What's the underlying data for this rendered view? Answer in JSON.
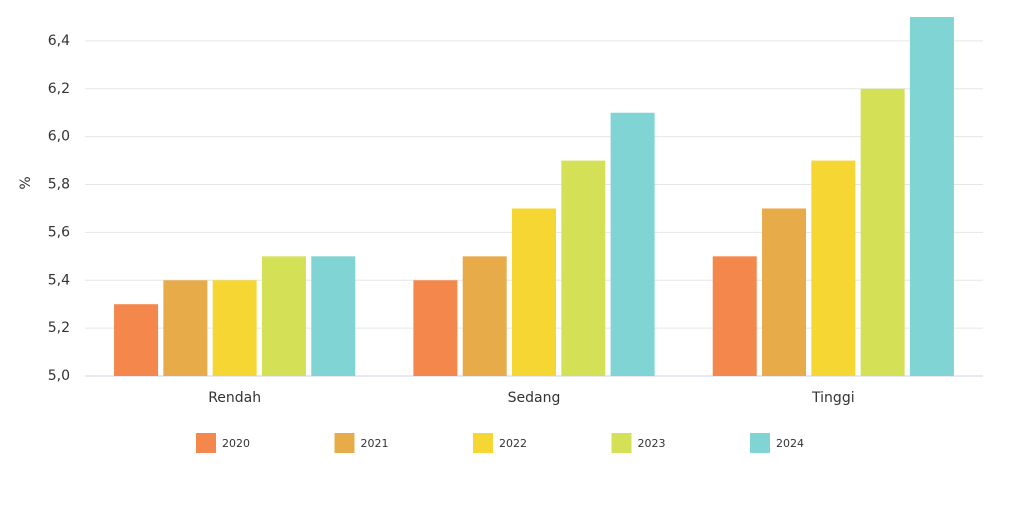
{
  "chart_data": {
    "type": "bar",
    "y_label": "%",
    "categories": [
      "Rendah",
      "Sedang",
      "Tinggi"
    ],
    "series": [
      {
        "name": "2020",
        "color": "#f4874b",
        "values": [
          5.3,
          5.4,
          5.5
        ]
      },
      {
        "name": "2021",
        "color": "#e8ab4a",
        "values": [
          5.4,
          5.5,
          5.7
        ]
      },
      {
        "name": "2022",
        "color": "#f5d633",
        "values": [
          5.4,
          5.7,
          5.9
        ]
      },
      {
        "name": "2023",
        "color": "#d4e157",
        "values": [
          5.5,
          5.9,
          6.2
        ]
      },
      {
        "name": "2024",
        "color": "#80d4d4",
        "values": [
          5.5,
          6.1,
          6.5
        ]
      }
    ],
    "ylim": [
      5.0,
      6.5
    ],
    "yticks": [
      {
        "value": 5.0,
        "label": "5,0"
      },
      {
        "value": 5.2,
        "label": "5,2"
      },
      {
        "value": 5.4,
        "label": "5,4"
      },
      {
        "value": 5.6,
        "label": "5,6"
      },
      {
        "value": 5.8,
        "label": "5,8"
      },
      {
        "value": 6.0,
        "label": "6,0"
      },
      {
        "value": 6.2,
        "label": "6,2"
      },
      {
        "value": 6.4,
        "label": "6,4"
      }
    ],
    "grid": true
  }
}
